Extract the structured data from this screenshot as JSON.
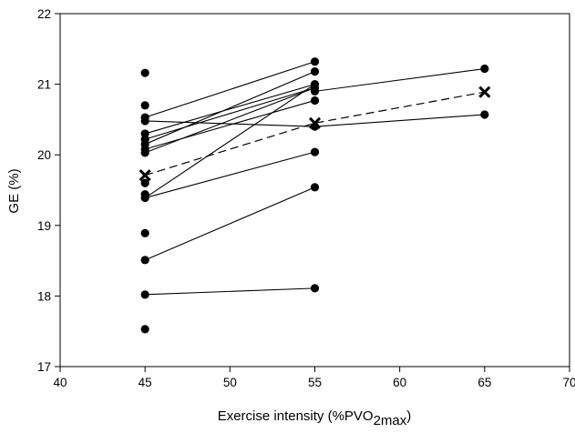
{
  "chart_data": {
    "type": "scatter",
    "title": "",
    "xlabel": "Exercise intensity (%PVO",
    "xlabel_subscript": "2max",
    "xlabel_close": ")",
    "ylabel": "GE (%)",
    "xlim": [
      40,
      70
    ],
    "ylim": [
      17,
      22
    ],
    "xticks": [
      40,
      45,
      50,
      55,
      60,
      65,
      70
    ],
    "yticks": [
      17,
      18,
      19,
      20,
      21,
      22
    ],
    "grid": false,
    "legend": "none",
    "marker_color": "#000000",
    "line_color": "#000000",
    "points": [
      {
        "x": 45,
        "y": 21.16
      },
      {
        "x": 45,
        "y": 20.7
      },
      {
        "x": 45,
        "y": 20.53
      },
      {
        "x": 45,
        "y": 20.48
      },
      {
        "x": 45,
        "y": 20.3
      },
      {
        "x": 45,
        "y": 20.22
      },
      {
        "x": 45,
        "y": 20.15
      },
      {
        "x": 45,
        "y": 20.08
      },
      {
        "x": 45,
        "y": 20.03
      },
      {
        "x": 45,
        "y": 19.6
      },
      {
        "x": 45,
        "y": 19.44
      },
      {
        "x": 45,
        "y": 19.39
      },
      {
        "x": 45,
        "y": 18.89
      },
      {
        "x": 45,
        "y": 18.51
      },
      {
        "x": 45,
        "y": 18.02
      },
      {
        "x": 45,
        "y": 17.53
      },
      {
        "x": 55,
        "y": 21.32
      },
      {
        "x": 55,
        "y": 21.18
      },
      {
        "x": 55,
        "y": 21.0
      },
      {
        "x": 55,
        "y": 20.95
      },
      {
        "x": 55,
        "y": 20.9
      },
      {
        "x": 55,
        "y": 20.77
      },
      {
        "x": 55,
        "y": 20.4
      },
      {
        "x": 55,
        "y": 20.04
      },
      {
        "x": 55,
        "y": 19.54
      },
      {
        "x": 55,
        "y": 18.11
      },
      {
        "x": 65,
        "y": 21.22
      },
      {
        "x": 65,
        "y": 20.57
      }
    ],
    "subjects": [
      {
        "x": [
          45,
          55
        ],
        "y": [
          20.53,
          21.32
        ]
      },
      {
        "x": [
          45,
          55
        ],
        "y": [
          20.3,
          21.0
        ]
      },
      {
        "x": [
          45,
          55
        ],
        "y": [
          20.22,
          20.95
        ]
      },
      {
        "x": [
          45,
          55
        ],
        "y": [
          20.15,
          21.18
        ]
      },
      {
        "x": [
          45,
          55
        ],
        "y": [
          20.08,
          20.77
        ]
      },
      {
        "x": [
          45,
          55
        ],
        "y": [
          20.03,
          20.95
        ]
      },
      {
        "x": [
          45,
          55
        ],
        "y": [
          19.39,
          21.0
        ]
      },
      {
        "x": [
          45,
          55
        ],
        "y": [
          19.39,
          20.04
        ]
      },
      {
        "x": [
          45,
          55
        ],
        "y": [
          18.51,
          19.54
        ]
      },
      {
        "x": [
          45,
          55
        ],
        "y": [
          18.02,
          18.11
        ]
      },
      {
        "x": [
          45,
          55,
          65
        ],
        "y": [
          20.48,
          20.4,
          20.57
        ]
      },
      {
        "x": [
          55,
          65
        ],
        "y": [
          20.9,
          21.22
        ]
      }
    ],
    "mean_series": {
      "x": [
        45,
        55,
        65
      ],
      "y": [
        19.71,
        20.45,
        20.89
      ],
      "marker": "x",
      "line": "dashed"
    }
  }
}
